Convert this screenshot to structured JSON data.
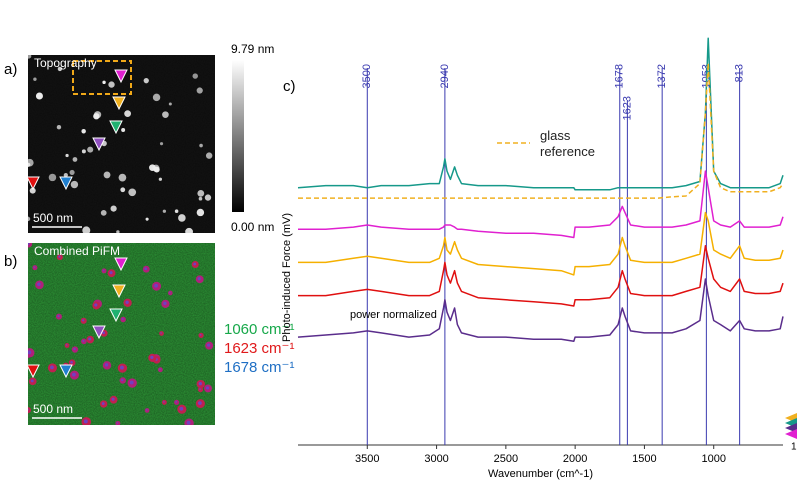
{
  "panel_a": {
    "label": "a)",
    "title": "Topography",
    "scale_bar": "500 nm",
    "colorbar": {
      "max_label": "9.79 nm",
      "min_label": "0.00 nm"
    }
  },
  "panel_b": {
    "label": "b)",
    "title": "Combined PiFM",
    "scale_bar": "500 nm",
    "channels": [
      {
        "label": "1060 cm⁻¹",
        "color": "#17a84a"
      },
      {
        "label": "1623 cm⁻¹",
        "color": "#e0191b"
      },
      {
        "label": "1678 cm⁻¹",
        "color": "#1f6fc4"
      }
    ]
  },
  "chart_data": {
    "type": "line",
    "label": "c)",
    "xlabel": "Wavenumber (cm^-1)",
    "ylabel": "Photo-induced Force (mV)",
    "xlim": [
      4000,
      500
    ],
    "xticks": [
      3500,
      3000,
      2500,
      2000,
      1500,
      1000
    ],
    "ylim": [
      0,
      100
    ],
    "peak_lines": [
      3500,
      2940,
      1678,
      1623,
      1372,
      1053,
      813
    ],
    "peak_color": "#3a3ab0",
    "annotations": [
      "power normalized"
    ],
    "end_marker_label": "1",
    "x": [
      4000,
      3800,
      3600,
      3500,
      3400,
      3200,
      3050,
      2980,
      2950,
      2940,
      2925,
      2900,
      2870,
      2850,
      2820,
      2700,
      2500,
      2300,
      2100,
      2010,
      2000,
      1900,
      1750,
      1690,
      1660,
      1640,
      1600,
      1500,
      1400,
      1300,
      1200,
      1100,
      1060,
      1040,
      1000,
      950,
      880,
      813,
      780,
      700,
      600,
      520,
      500
    ],
    "series": [
      {
        "color": "#16998a",
        "values": [
          62,
          62.5,
          62.5,
          62,
          62.5,
          62.5,
          63,
          63,
          67,
          69,
          66,
          64,
          67,
          65,
          63,
          62.5,
          62.5,
          62,
          62,
          62,
          61.5,
          61.5,
          61.5,
          62,
          62,
          62,
          62,
          62,
          62,
          62,
          62.5,
          63.5,
          80,
          98,
          66,
          63,
          62,
          62,
          62,
          62,
          62,
          63,
          65
        ]
      },
      {
        "name": "glass reference",
        "color": "#f0b020",
        "dashed": true,
        "values": [
          59.5,
          59.5,
          59.5,
          59.5,
          59.5,
          59.5,
          59.5,
          59.5,
          59.5,
          59.5,
          59.5,
          59.5,
          59.5,
          59.5,
          59.5,
          59.5,
          59.5,
          59.5,
          59.5,
          59.5,
          59.5,
          59.5,
          59.5,
          59.5,
          59.5,
          59.5,
          59.5,
          59.5,
          59.5,
          59.8,
          60,
          63,
          80,
          92,
          66,
          62,
          61,
          61,
          61,
          61,
          61,
          62,
          63
        ]
      },
      {
        "color": "#e020d0",
        "values": [
          52,
          52,
          52.5,
          53,
          52.5,
          52,
          52,
          52,
          52.5,
          53,
          53,
          53,
          52.5,
          52,
          52,
          51.5,
          51,
          51,
          50.5,
          50,
          52.5,
          52.5,
          53,
          55,
          57.5,
          56,
          53,
          52.5,
          52.5,
          52.5,
          53,
          54,
          66,
          62,
          54,
          53,
          52.5,
          54,
          52.5,
          52.5,
          52.5,
          53,
          55
        ]
      },
      {
        "color": "#f5b000",
        "values": [
          44,
          44,
          45,
          45.5,
          45,
          44,
          44,
          45,
          48,
          50,
          47,
          46,
          49,
          47,
          45,
          43.5,
          43,
          42.5,
          42,
          41,
          43,
          43,
          43.5,
          46,
          50,
          48,
          44.5,
          44,
          44,
          44,
          45,
          46,
          56,
          54,
          47,
          46,
          45,
          48,
          45,
          44.5,
          44.5,
          45,
          47
        ]
      },
      {
        "color": "#e01010",
        "values": [
          36,
          36,
          37,
          37.5,
          37,
          36,
          36,
          37,
          42,
          44,
          41,
          39,
          42,
          39,
          37,
          35.5,
          35,
          34.5,
          34,
          33.5,
          35,
          35,
          35.5,
          38,
          42,
          40,
          36.5,
          36,
          36,
          36,
          37,
          38,
          48,
          45,
          40,
          38,
          37,
          40,
          37,
          36.5,
          36.5,
          37,
          39
        ]
      },
      {
        "color": "#5a2d8c",
        "values": [
          26,
          26.5,
          27,
          27.5,
          27,
          26,
          26.5,
          28,
          33,
          35,
          32,
          30,
          33,
          29,
          27,
          26,
          26,
          25.5,
          25.5,
          25,
          26,
          26,
          26.5,
          29,
          33,
          31,
          27.5,
          27,
          27,
          27,
          28,
          30,
          40,
          36,
          30,
          29,
          27.5,
          30,
          28,
          27.5,
          27.5,
          28,
          31
        ]
      }
    ]
  }
}
